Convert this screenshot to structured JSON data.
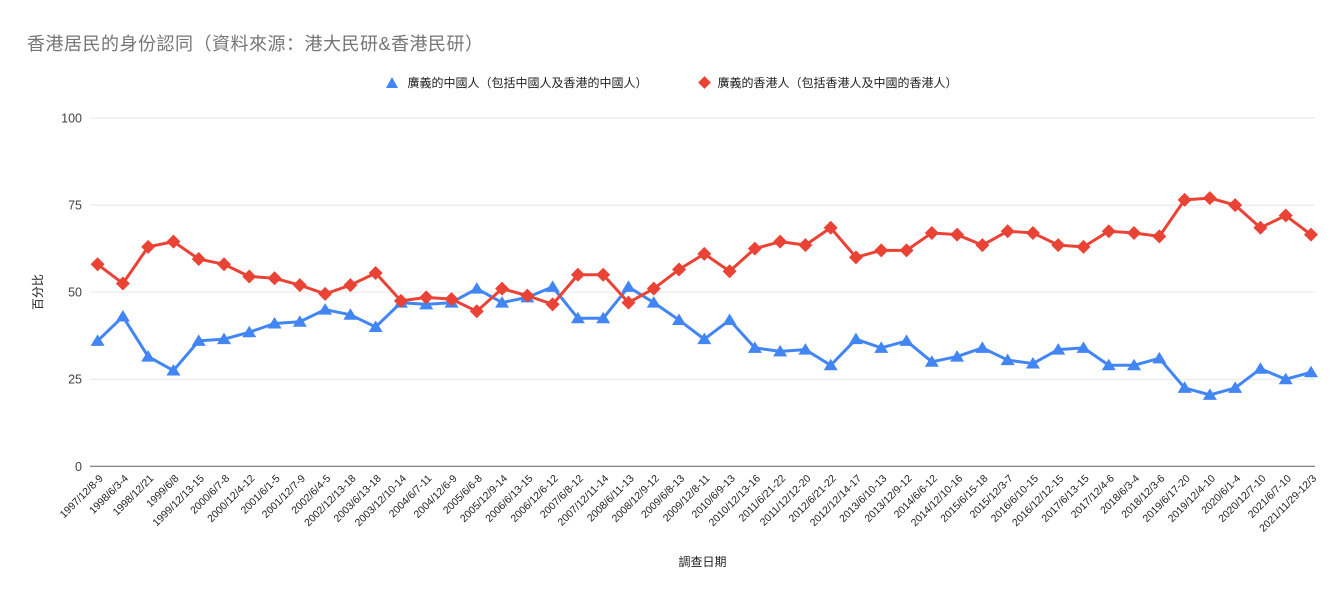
{
  "title": "香港居民的身份認同（資料來源：港大民研&香港民研）",
  "colors": {
    "background": "#ffffff",
    "title_text": "#757575",
    "axis_label_text": "#424242",
    "tick_label_text": "#212121",
    "gridline": "#e6e6e6",
    "baseline": "#616161",
    "series_chinese": "#4285F4",
    "series_hongkonger": "#EA4335"
  },
  "legend": {
    "items": [
      {
        "label": "廣義的中國人（包括中國人及香港的中國人）",
        "marker": "triangle-icon",
        "color": "#4285F4"
      },
      {
        "label": "廣義的香港人（包括香港人及中國的香港人）",
        "marker": "diamond-icon",
        "color": "#EA4335"
      }
    ]
  },
  "chart_data": {
    "type": "line",
    "title": "香港居民的身份認同（資料來源：港大民研&香港民研）",
    "xlabel": "調查日期",
    "ylabel": "百分比",
    "ylim": [
      0,
      100
    ],
    "yticks": [
      0,
      25,
      50,
      75,
      100
    ],
    "grid": true,
    "legend_position": "top-center",
    "categories": [
      "1997/12/8-9",
      "1998/6/3-4",
      "1998/12/21",
      "1999/6/8",
      "1999/12/13-15",
      "2000/6/7-8",
      "2000/12/4-12",
      "2001/6/1-5",
      "2001/12/7-9",
      "2002/6/4-5",
      "2002/12/13-18",
      "2003/6/13-18",
      "2003/12/10-14",
      "2004/6/7-11",
      "2004/12/6-9",
      "2005/6/6-8",
      "2005/12/9-14",
      "2006/6/13-15",
      "2006/12/6-12",
      "2007/6/8-12",
      "2007/12/11-14",
      "2008/6/11-13",
      "2008/12/9-12",
      "2009/6/8-13",
      "2009/12/8-11",
      "2010/6/9-13",
      "2010/12/13-16",
      "2011/6/21-22",
      "2011/12/12-20",
      "2012/6/21-22",
      "2012/12/14-17",
      "2013/6/10-13",
      "2013/12/9-12",
      "2014/6/6-12",
      "2014/12/10-16",
      "2015/6/15-18",
      "2015/12/3-7",
      "2016/6/10-15",
      "2016/12/12-15",
      "2017/6/13-15",
      "2017/12/4-6",
      "2018/6/3-4",
      "2018/12/3-6",
      "2019/6/17-20",
      "2019/12/4-10",
      "2020/6/1-4",
      "2020/12/7-10",
      "2021/6/7-10",
      "2021/11/29-12/3"
    ],
    "series": [
      {
        "name": "廣義的中國人（包括中國人及香港的中國人）",
        "color": "#4285F4",
        "marker": "triangle",
        "values": [
          36,
          43,
          31.5,
          27.5,
          36,
          36.5,
          38.5,
          41,
          41.5,
          45,
          43.5,
          40,
          47,
          46.5,
          47,
          51,
          47,
          48.5,
          51.5,
          42.5,
          42.5,
          51.5,
          47,
          42,
          36.5,
          42,
          34,
          33,
          33.5,
          29,
          36.5,
          34,
          36,
          30,
          31.5,
          34,
          30.5,
          29.5,
          33.5,
          34,
          29,
          29,
          31,
          22.5,
          20.5,
          22.5,
          28,
          25,
          27
        ]
      },
      {
        "name": "廣義的香港人（包括香港人及中國的香港人）",
        "color": "#EA4335",
        "marker": "diamond",
        "values": [
          58,
          52.5,
          63,
          64.5,
          59.5,
          58,
          54.5,
          54,
          52,
          49.5,
          52,
          55.5,
          47.5,
          48.5,
          48,
          44.5,
          51,
          49,
          46.5,
          55,
          55,
          47,
          51,
          56.5,
          61,
          56,
          62.5,
          64.5,
          63.5,
          68.5,
          60,
          62,
          62,
          67,
          66.5,
          63.5,
          67.5,
          67,
          63.5,
          63,
          67.5,
          67,
          66,
          76.5,
          77,
          75,
          68.5,
          72,
          66.5
        ]
      }
    ]
  }
}
